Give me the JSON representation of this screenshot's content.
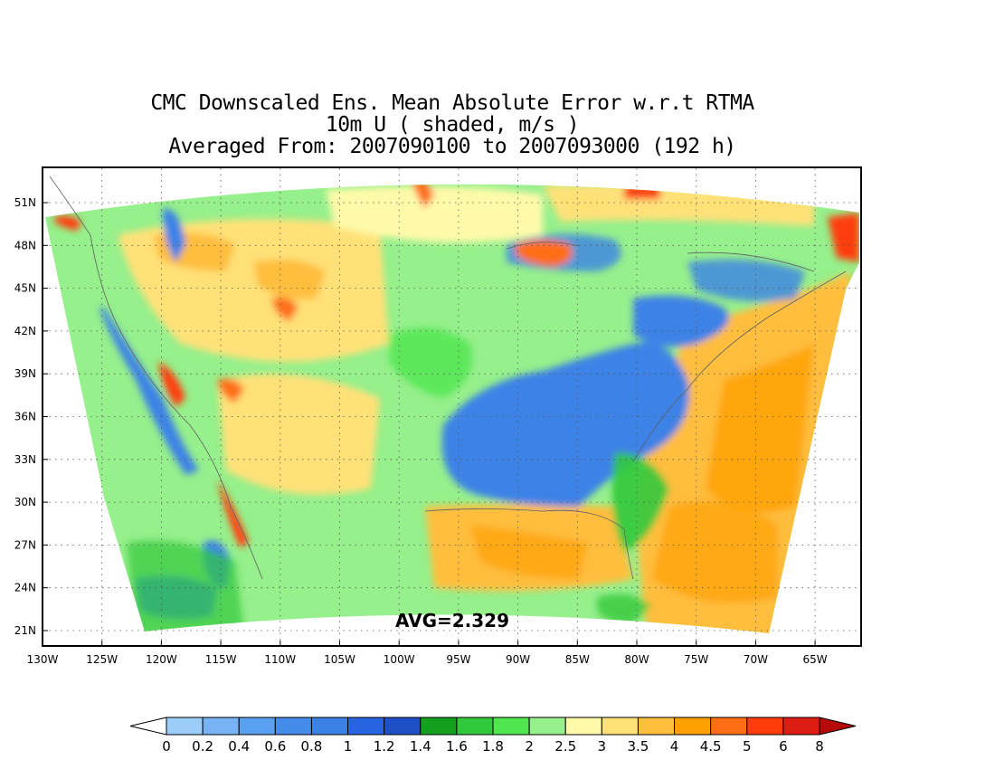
{
  "title": {
    "line1": "CMC Downscaled Ens. Mean Absolute Error w.r.t RTMA",
    "line2": "10m U ( shaded, m/s )",
    "line3": "Averaged From: 2007090100 to 2007093000 (192 h)"
  },
  "annotation": {
    "avg_label": "AVG=2.329"
  },
  "map": {
    "lon_ticks": [
      "130W",
      "125W",
      "120W",
      "115W",
      "110W",
      "105W",
      "100W",
      "95W",
      "90W",
      "85W",
      "80W",
      "75W",
      "70W",
      "65W"
    ],
    "lat_ticks": [
      "51N",
      "48N",
      "45N",
      "42N",
      "39N",
      "36N",
      "33N",
      "30N",
      "27N",
      "24N",
      "21N"
    ],
    "grid": true
  },
  "colorbar": {
    "labels": [
      "0",
      "0.2",
      "0.4",
      "0.6",
      "0.8",
      "1",
      "1.2",
      "1.4",
      "1.6",
      "1.8",
      "2",
      "2.5",
      "3",
      "3.5",
      "4",
      "4.5",
      "5",
      "6",
      "8"
    ],
    "colors": [
      "#ffffff",
      "#9dcefa",
      "#78b4f5",
      "#5aa0f0",
      "#468ceb",
      "#3c82e6",
      "#2864e1",
      "#1e50c8",
      "#14a01e",
      "#32c83c",
      "#50e650",
      "#96f08c",
      "#fffaaa",
      "#ffe178",
      "#ffbe3c",
      "#ffa000",
      "#ff6e14",
      "#ff3c0a",
      "#dc1e14",
      "#b40a0a"
    ]
  }
}
